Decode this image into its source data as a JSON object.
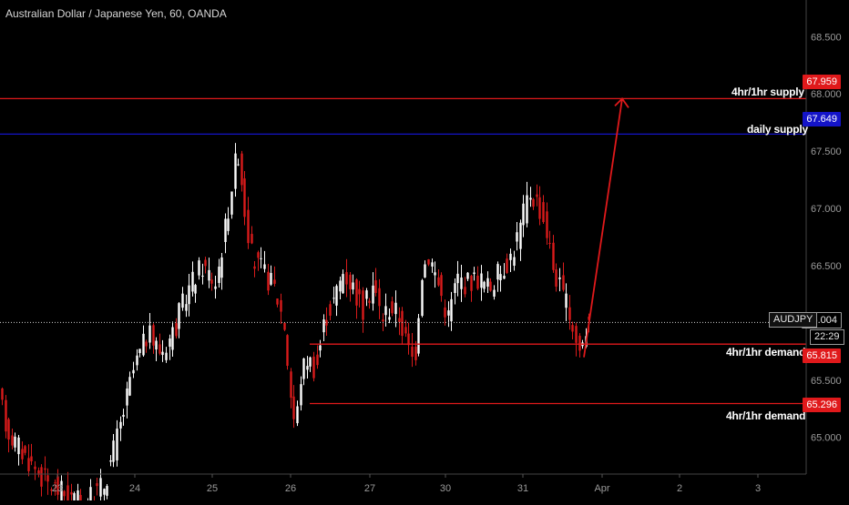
{
  "title": "Australian Dollar / Japanese Yen, 60, OANDA",
  "symbol": "AUDJPY",
  "countdown": "22:29",
  "colors": {
    "background": "#000000",
    "up_candle": "#ffffff",
    "down_candle": "#d91b1b",
    "supply_red": "#e0191b",
    "supply_blue": "#1414c8",
    "projection": "#e0191b",
    "axis_text": "#9a9a9a"
  },
  "chart_data": {
    "type": "candlestick",
    "instrument": "AUDJPY",
    "timeframe": "60",
    "y_axis": {
      "range": [
        64.68,
        68.82
      ],
      "tick_labels": [
        "68.500",
        "68.000",
        "67.500",
        "67.000",
        "66.500",
        "66.000",
        "65.500",
        "65.000"
      ],
      "tick_values": [
        68.5,
        68.0,
        67.5,
        67.0,
        66.5,
        66.0,
        65.5,
        65.0
      ]
    },
    "x_axis": {
      "tick_labels": [
        "23",
        "24",
        "25",
        "26",
        "27",
        "30",
        "31",
        "Apr",
        "2",
        "3"
      ]
    },
    "levels": [
      {
        "name": "4hr/1hr supply",
        "price": 67.959,
        "price_label": "67.959",
        "color": "#e0191b"
      },
      {
        "name": "daily supply",
        "price": 67.649,
        "price_label": "67.649",
        "color": "#1414c8"
      },
      {
        "name": "4hr/1hr demand",
        "price": 65.815,
        "price_label": "65.815",
        "color": "#e0191b"
      },
      {
        "name": "4hr/1hr demand",
        "price": 65.296,
        "price_label": "65.296",
        "color": "#e0191b"
      }
    ],
    "last_price": 66.004,
    "last_price_label": "66.004",
    "projection": {
      "from_price": 65.7,
      "to_price": 67.959
    }
  }
}
